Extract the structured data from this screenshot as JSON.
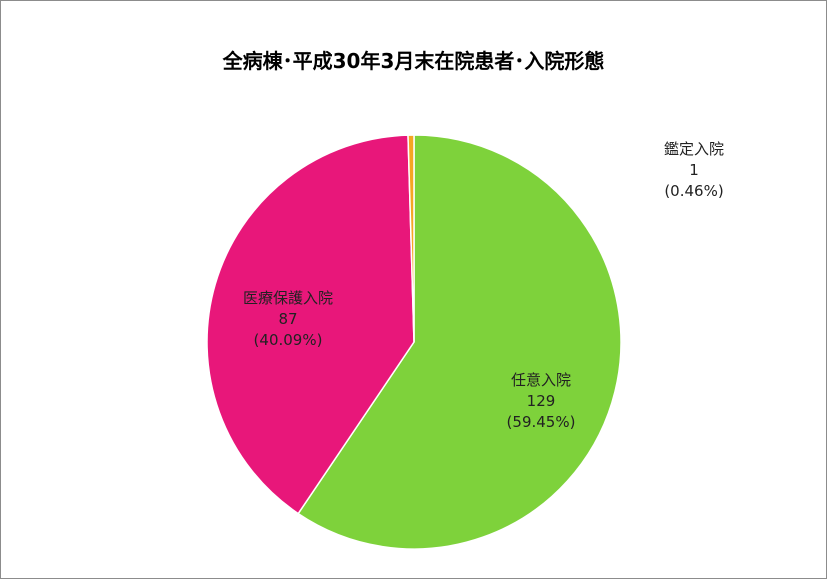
{
  "chart_data": {
    "type": "pie",
    "title": "全病棟･平成30年3月末在院患者･入院形態",
    "slices": [
      {
        "name": "任意入院",
        "value": 129,
        "percent": "(59.45%)",
        "color": "#7ed23b"
      },
      {
        "name": "医療保護入院",
        "value": 87,
        "percent": "(40.09%)",
        "color": "#e8177a"
      },
      {
        "name": "鑑定入院",
        "value": 1,
        "percent": "(0.46%)",
        "color": "#f5a623"
      }
    ]
  }
}
